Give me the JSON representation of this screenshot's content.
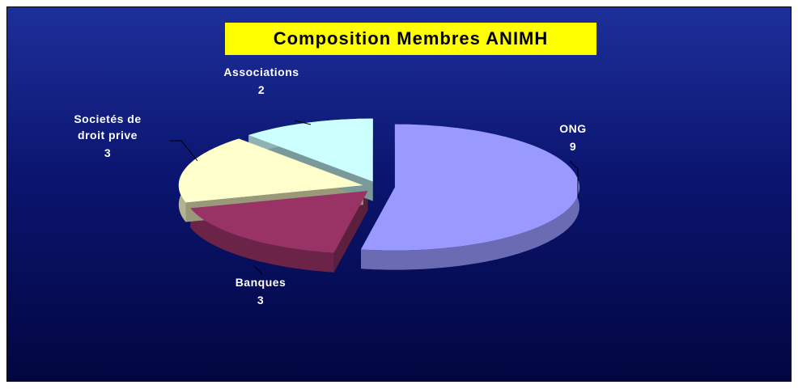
{
  "chart_data": {
    "type": "pie",
    "title": "Composition Membres ANIMH",
    "categories": [
      "ONG",
      "Banques",
      "Societés de droit prive",
      "Associations"
    ],
    "values": [
      9,
      3,
      3,
      2
    ],
    "colors": [
      "#9999ff",
      "#993366",
      "#ffffcc",
      "#ccffff"
    ]
  }
}
